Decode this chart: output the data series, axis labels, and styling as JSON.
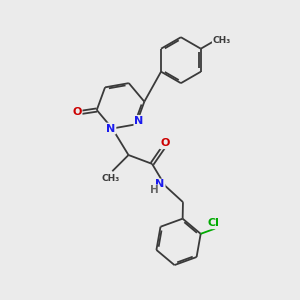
{
  "background_color": "#ebebeb",
  "bond_color": "#3a3a3a",
  "atom_colors": {
    "N": "#1a1aee",
    "O": "#cc0000",
    "Cl": "#00aa00",
    "H": "#666666"
  },
  "figsize": [
    3.0,
    3.0
  ],
  "dpi": 100
}
